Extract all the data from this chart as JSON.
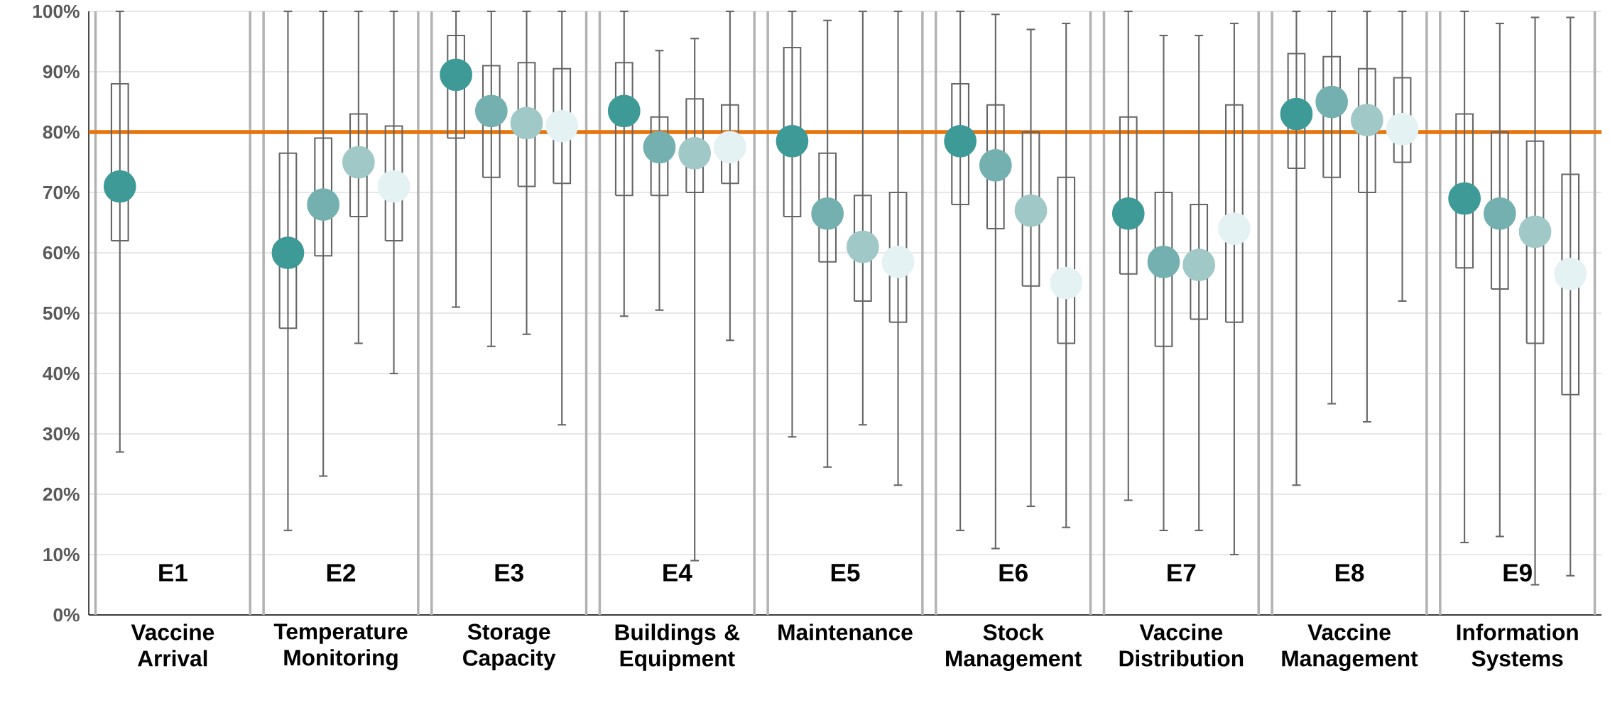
{
  "chart_data": {
    "type": "box",
    "categories": [
      "Vaccine Arrival",
      "Temperature Monitoring",
      "Storage Capacity",
      "Buildings & Equipment",
      "Maintenance",
      "Stock Management",
      "Vaccine Distribution",
      "Vaccine Management",
      "Information Systems"
    ],
    "series": [
      {
        "color": "#666666",
        "boxes": [
          {
            "low": 27,
            "q1": 62,
            "median": 71,
            "q3": 88,
            "high": 100
          },
          {
            "low": 14,
            "q1": 47.5,
            "median": 60,
            "q3": 76.5,
            "high": 100
          },
          {
            "low": 51,
            "q1": 79,
            "median": 89.5,
            "q3": 96,
            "high": 100
          },
          {
            "low": 49.5,
            "q1": 69.5,
            "median": 83.5,
            "q3": 91.5,
            "high": 100
          },
          {
            "low": 29.5,
            "q1": 66,
            "median": 78.5,
            "q3": 94,
            "high": 100
          },
          {
            "low": 14,
            "q1": 68,
            "median": 78.5,
            "q3": 88,
            "high": 100
          },
          {
            "low": 19,
            "q1": 56.5,
            "median": 66.5,
            "q3": 82.5,
            "high": 100
          },
          {
            "low": 21.5,
            "q1": 74,
            "median": 83,
            "q3": 93,
            "high": 100
          },
          {
            "low": 12,
            "q1": 57.5,
            "median": 69,
            "q3": 83,
            "high": 100
          }
        ]
      },
      {
        "color": "#666666",
        "boxes": [
          null,
          {
            "low": 23,
            "q1": 59.5,
            "median": 68,
            "q3": 79,
            "high": 100
          },
          {
            "low": 44.5,
            "q1": 72.5,
            "median": 83.5,
            "q3": 91,
            "high": 100
          },
          {
            "low": 50.5,
            "q1": 69.5,
            "median": 77.5,
            "q3": 82.5,
            "high": 93.5
          },
          {
            "low": 24.5,
            "q1": 58.5,
            "median": 66.5,
            "q3": 76.5,
            "high": 98.5
          },
          {
            "low": 11,
            "q1": 64,
            "median": 74.5,
            "q3": 84.5,
            "high": 99.5
          },
          {
            "low": 14,
            "q1": 44.5,
            "median": 58.5,
            "q3": 70,
            "high": 96
          },
          {
            "low": 35,
            "q1": 72.5,
            "median": 85,
            "q3": 92.5,
            "high": 100
          },
          {
            "low": 13,
            "q1": 54,
            "median": 66.5,
            "q3": 80,
            "high": 98
          }
        ]
      },
      {
        "color": "#666666",
        "boxes": [
          null,
          {
            "low": 45,
            "q1": 66,
            "median": 75,
            "q3": 83,
            "high": 100
          },
          {
            "low": 46.5,
            "q1": 71,
            "median": 81.5,
            "q3": 91.5,
            "high": 100
          },
          {
            "low": 9,
            "q1": 70,
            "median": 76.5,
            "q3": 85.5,
            "high": 95.5
          },
          {
            "low": 31.5,
            "q1": 52,
            "median": 61,
            "q3": 69.5,
            "high": 100
          },
          {
            "low": 18,
            "q1": 54.5,
            "median": 67,
            "q3": 80,
            "high": 97
          },
          {
            "low": 14,
            "q1": 49,
            "median": 58,
            "q3": 68,
            "high": 96
          },
          {
            "low": 32,
            "q1": 70,
            "median": 82,
            "q3": 90.5,
            "high": 100
          },
          {
            "low": 5,
            "q1": 45,
            "median": 63.5,
            "q3": 78.5,
            "high": 99
          }
        ]
      },
      {
        "color": "#666666",
        "boxes": [
          null,
          {
            "low": 40,
            "q1": 62,
            "median": 71,
            "q3": 81,
            "high": 100
          },
          {
            "low": 31.5,
            "q1": 71.5,
            "median": 81,
            "q3": 90.5,
            "high": 100
          },
          {
            "low": 45.5,
            "q1": 71.5,
            "median": 77.5,
            "q3": 84.5,
            "high": 100
          },
          {
            "low": 21.5,
            "q1": 48.5,
            "median": 58.5,
            "q3": 70,
            "high": 100
          },
          {
            "low": 14.5,
            "q1": 45,
            "median": 55,
            "q3": 72.5,
            "high": 98
          },
          {
            "low": 10,
            "q1": 48.5,
            "median": 64,
            "q3": 84.5,
            "high": 98
          },
          {
            "low": 52,
            "q1": 75,
            "median": 80.5,
            "q3": 89,
            "high": 100
          },
          {
            "low": 6.5,
            "q1": 36.5,
            "median": 56.5,
            "q3": 73,
            "high": 99
          }
        ]
      },
      {
        "type": "scatter",
        "color": "#3d9a96",
        "x": [
          "Vaccine Arrival",
          "Temperature Monitoring",
          "Storage Capacity",
          "Buildings & Equipment",
          "Maintenance",
          "Stock Management",
          "Vaccine Distribution",
          "Vaccine Management",
          "Information Systems"
        ],
        "values": [
          71,
          60,
          89.5,
          83.5,
          78.5,
          78.5,
          66.5,
          83,
          69
        ]
      },
      {
        "type": "scatter",
        "color": "#74b0b0",
        "x": [
          "Temperature Monitoring",
          "Storage Capacity",
          "Buildings & Equipment",
          "Maintenance",
          "Stock Management",
          "Vaccine Distribution",
          "Vaccine Management",
          "Information Systems"
        ],
        "values": [
          68,
          83.5,
          77.5,
          66.5,
          74.5,
          58.5,
          85,
          66.5
        ]
      },
      {
        "type": "scatter",
        "color": "#9fc8c6",
        "x": [
          "Temperature Monitoring",
          "Storage Capacity",
          "Buildings & Equipment",
          "Maintenance",
          "Stock Management",
          "Vaccine Distribution",
          "Vaccine Management",
          "Information Systems"
        ],
        "values": [
          75,
          81.5,
          76.5,
          61,
          67,
          58,
          82,
          63.5
        ]
      },
      {
        "type": "scatter",
        "color": "#e4f2f3",
        "x": [
          "Temperature Monitoring",
          "Storage Capacity",
          "Buildings & Equipment",
          "Maintenance",
          "Stock Management",
          "Vaccine Distribution",
          "Vaccine Management",
          "Information Systems"
        ],
        "values": [
          71,
          81,
          77.5,
          58.5,
          55,
          64,
          80.5,
          56.5
        ]
      }
    ],
    "ylim": [
      0,
      100
    ],
    "yticks": [
      {
        "value": 0,
        "label": "0%"
      },
      {
        "value": 10,
        "label": "10%"
      },
      {
        "value": 20,
        "label": "20%"
      },
      {
        "value": 30,
        "label": "30%"
      },
      {
        "value": 40,
        "label": "40%"
      },
      {
        "value": 50,
        "label": "50%"
      },
      {
        "value": 60,
        "label": "60%"
      },
      {
        "value": 70,
        "label": "70%"
      },
      {
        "value": 80,
        "label": "80%"
      },
      {
        "value": 90,
        "label": "90%"
      },
      {
        "value": 100,
        "label": "100%"
      }
    ],
    "ref_lines": [
      {
        "axis": "y",
        "value": 80,
        "color": "#e8730a"
      }
    ],
    "annotations": [
      "E1",
      "E2",
      "E3",
      "E4",
      "E5",
      "E6",
      "E7",
      "E8",
      "E9"
    ],
    "grid": "y",
    "marker": "circle"
  }
}
